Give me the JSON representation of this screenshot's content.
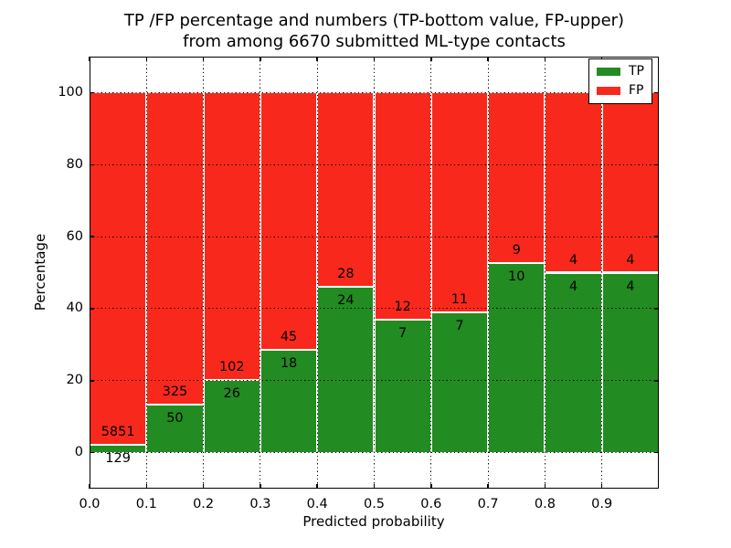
{
  "chart_data": {
    "type": "bar",
    "stacked": true,
    "normalized_to_percent": true,
    "title_line1": "TP /FP percentage and numbers (TP-bottom value, FP-upper)",
    "title_line2": "from among 6670 submitted ML-type contacts",
    "xlabel": "Predicted probability",
    "ylabel": "Percentage",
    "total_contacts": 6670,
    "xlim": [
      0.0,
      1.0
    ],
    "ylim": [
      -10,
      110
    ],
    "bar_width": 0.1,
    "grid": "dotted",
    "bins": [
      {
        "start": 0.0,
        "tp": 129,
        "fp": 5851
      },
      {
        "start": 0.1,
        "tp": 50,
        "fp": 325
      },
      {
        "start": 0.2,
        "tp": 26,
        "fp": 102
      },
      {
        "start": 0.3,
        "tp": 18,
        "fp": 45
      },
      {
        "start": 0.4,
        "tp": 24,
        "fp": 28
      },
      {
        "start": 0.5,
        "tp": 7,
        "fp": 12
      },
      {
        "start": 0.6,
        "tp": 7,
        "fp": 11
      },
      {
        "start": 0.7,
        "tp": 10,
        "fp": 9
      },
      {
        "start": 0.8,
        "tp": 4,
        "fp": 4
      },
      {
        "start": 0.9,
        "tp": 4,
        "fp": 4
      }
    ],
    "xtick_labels": [
      "0.0",
      "0.1",
      "0.2",
      "0.3",
      "0.4",
      "0.5",
      "0.6",
      "0.7",
      "0.8",
      "0.9"
    ],
    "ytick_values": [
      0,
      20,
      40,
      60,
      80,
      100
    ],
    "colors": {
      "tp": "#228b22",
      "fp": "#f8291c"
    },
    "legend": {
      "position": "upper right",
      "entries": [
        {
          "label": "TP",
          "color": "#228b22"
        },
        {
          "label": "FP",
          "color": "#f8291c"
        }
      ]
    }
  }
}
